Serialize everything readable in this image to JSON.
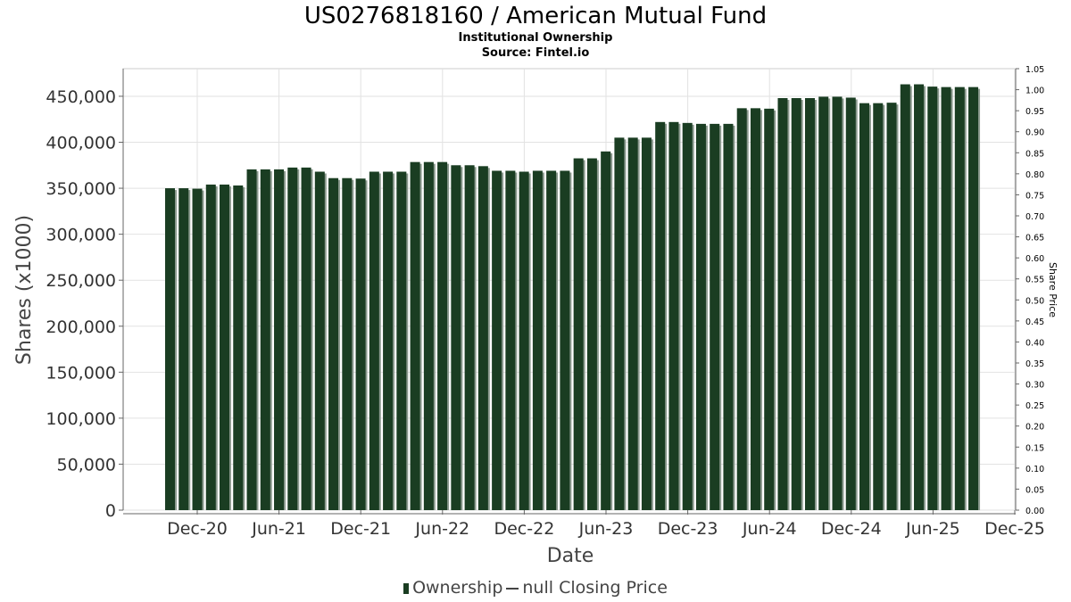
{
  "title": "US0276818160 / American Mutual Fund",
  "subtitle": "Institutional Ownership",
  "source": "Source: Fintel.io",
  "legend": {
    "ownership_label": "Ownership",
    "price_label": "null Closing Price"
  },
  "colors": {
    "bar": "#1a3d22",
    "bar_shadow": "#8c9a8f",
    "grid": "#e2e2e2",
    "axis": "#666666"
  },
  "chart_data": {
    "type": "bar",
    "xlabel": "Date",
    "ylabel": "Shares (x1000)",
    "y2label": "Share Price",
    "ylim": [
      0,
      480000
    ],
    "y2lim": [
      0,
      1.05
    ],
    "grid": true,
    "legend_position": "bottom",
    "x_ticks": [
      "Dec-20",
      "Jun-21",
      "Dec-21",
      "Jun-22",
      "Dec-22",
      "Jun-23",
      "Dec-23",
      "Jun-24",
      "Dec-24",
      "Jun-25",
      "Dec-25"
    ],
    "y_ticks": [
      "0",
      "50,000",
      "100,000",
      "150,000",
      "200,000",
      "250,000",
      "300,000",
      "350,000",
      "400,000",
      "450,000"
    ],
    "y2_ticks": [
      "0.00",
      "0.05",
      "0.10",
      "0.15",
      "0.20",
      "0.25",
      "0.30",
      "0.35",
      "0.40",
      "0.45",
      "0.50",
      "0.55",
      "0.60",
      "0.65",
      "0.70",
      "0.75",
      "0.80",
      "0.85",
      "0.90",
      "0.95",
      "1.00",
      "1.05"
    ],
    "series": [
      {
        "name": "Ownership",
        "values": [
          350000,
          350000,
          349500,
          354000,
          354000,
          353000,
          370500,
          370500,
          370500,
          372500,
          372500,
          368000,
          361000,
          361000,
          360500,
          368000,
          368000,
          368000,
          378500,
          378500,
          378500,
          375000,
          375000,
          374000,
          369000,
          369000,
          368000,
          369000,
          369000,
          369000,
          382500,
          382500,
          390000,
          405000,
          405000,
          405000,
          422000,
          422000,
          421000,
          420000,
          420000,
          420000,
          437000,
          437000,
          436500,
          448000,
          448000,
          448000,
          449500,
          449500,
          448500,
          442500,
          442500,
          443000,
          463000,
          463000,
          460500,
          460000,
          460000,
          460000
        ]
      }
    ]
  }
}
